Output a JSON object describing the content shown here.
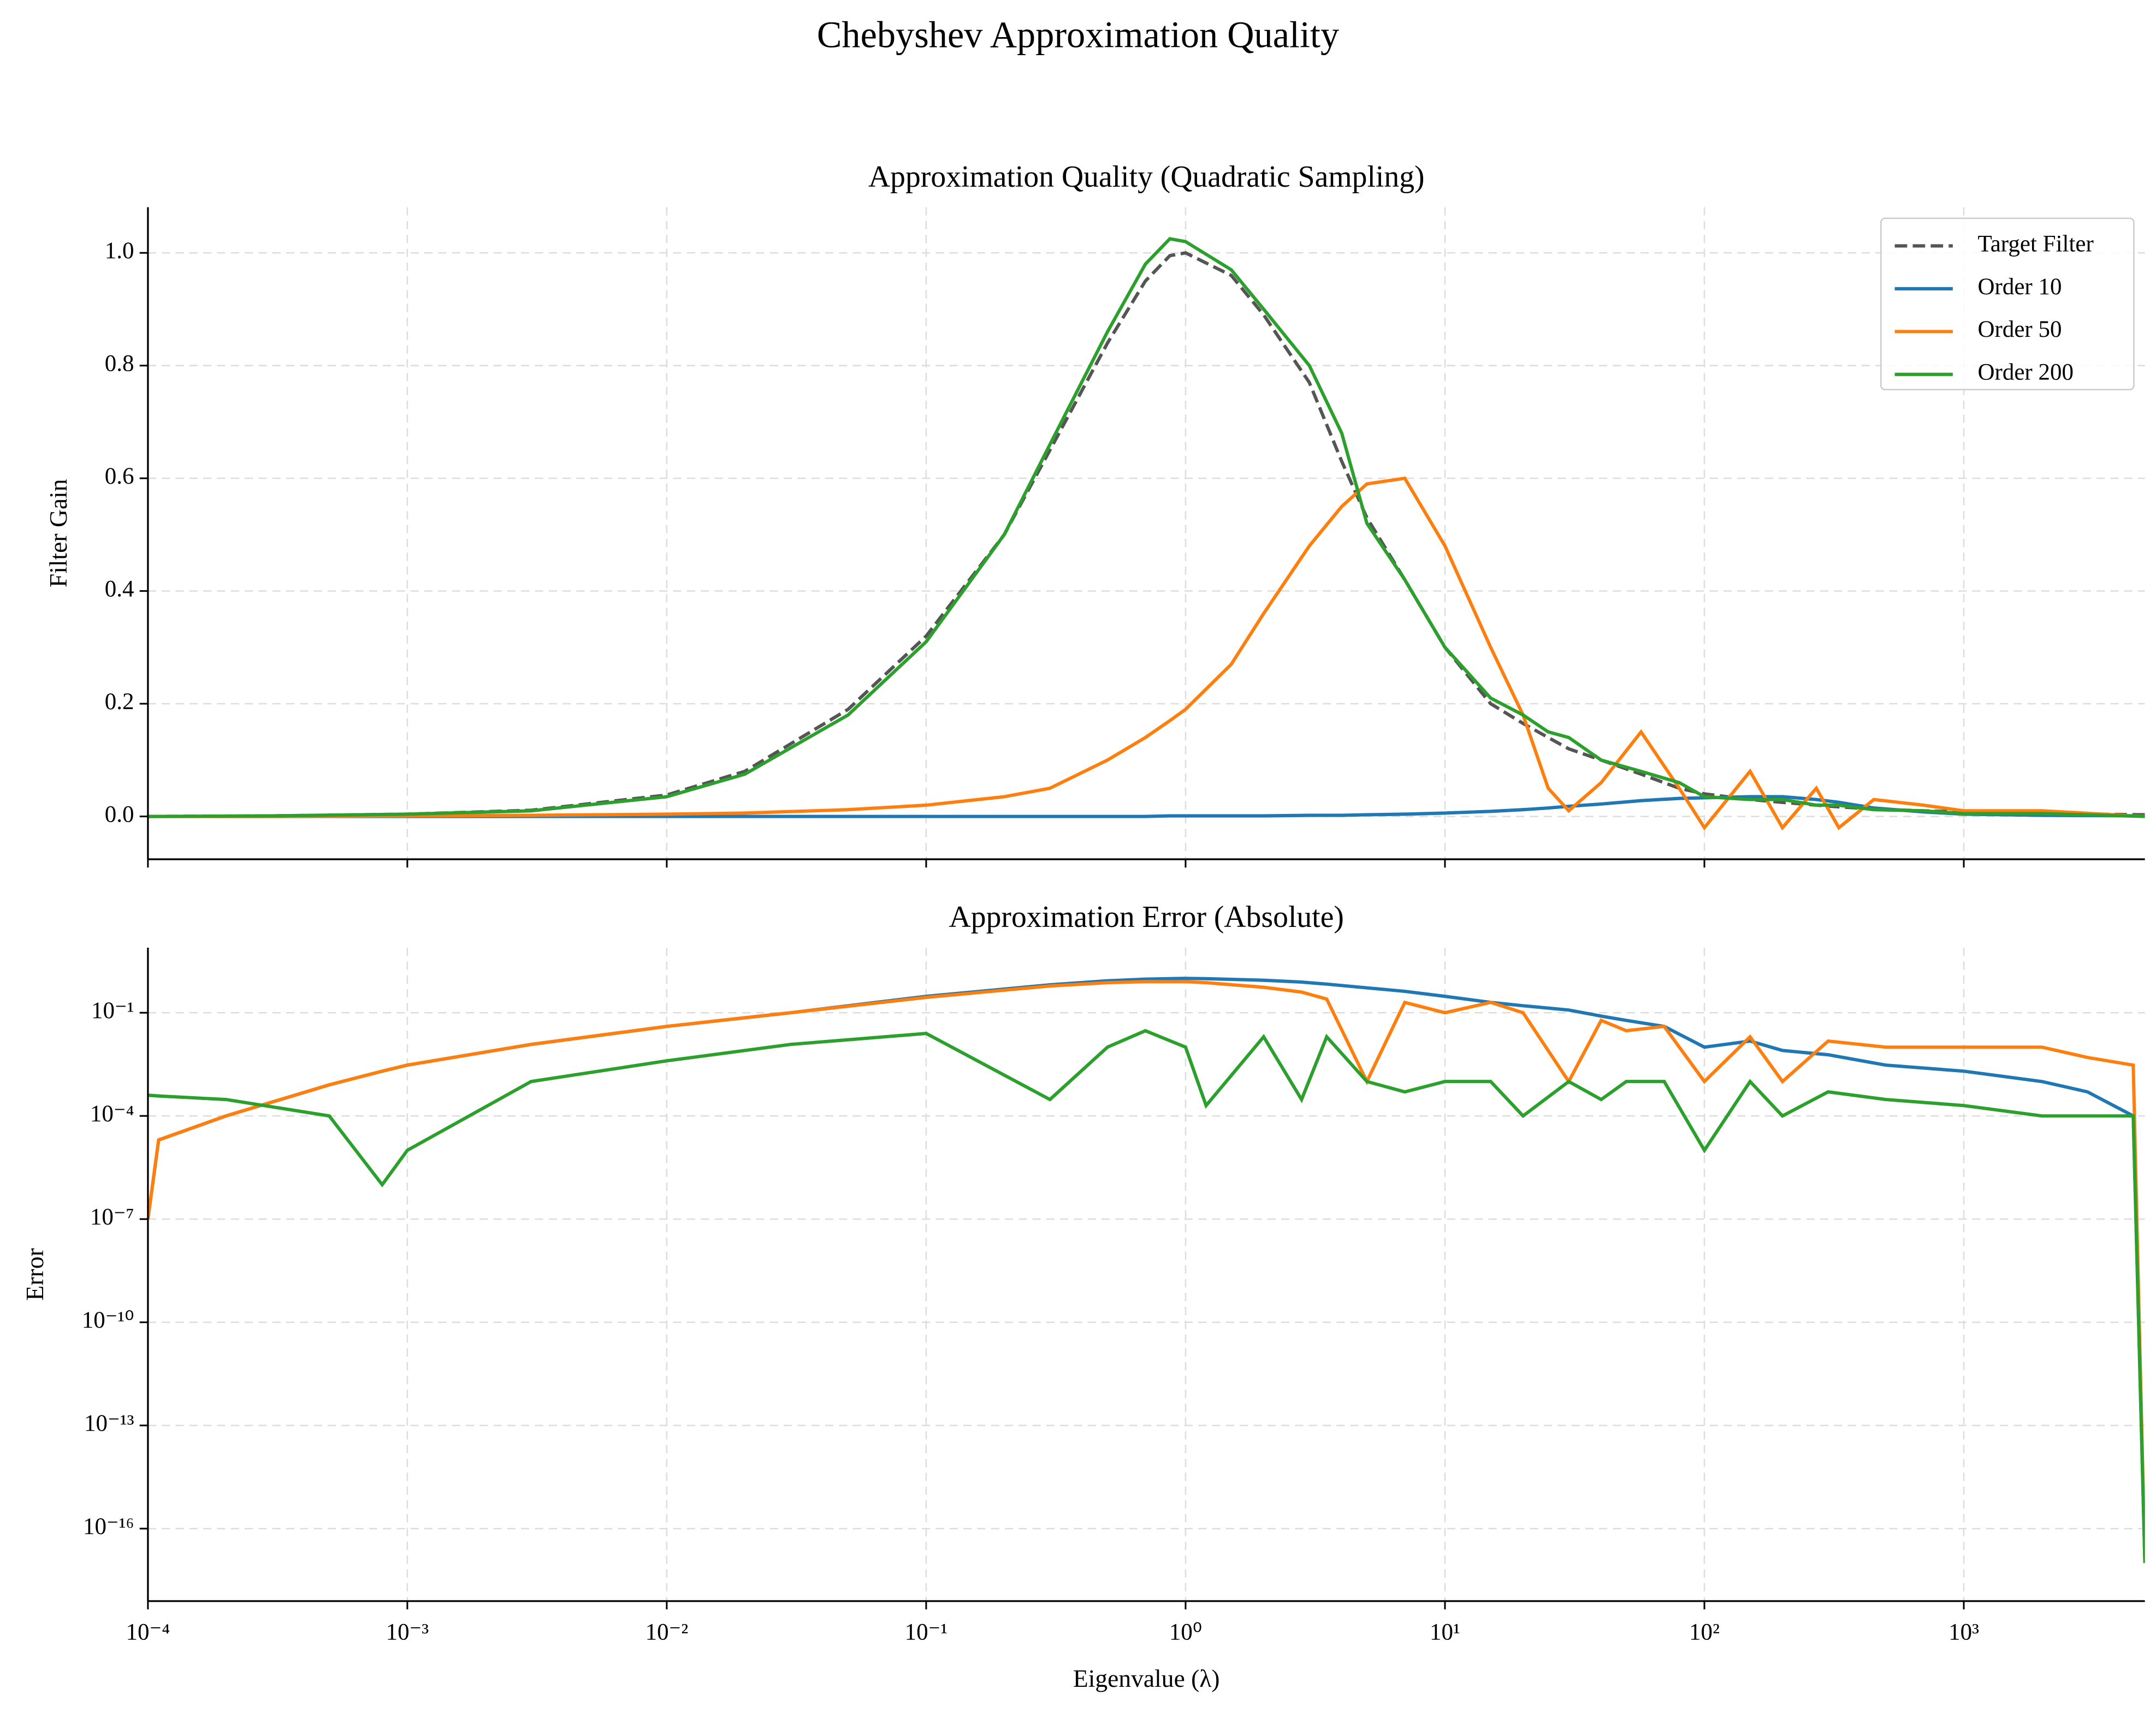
{
  "title": "Chebyshev Approximation Quality",
  "chart_data": [
    {
      "type": "line",
      "title": "Approximation Quality (Quadratic Sampling)",
      "ylabel": "Filter Gain",
      "logx": true,
      "logy": false,
      "grid": true,
      "legend": "upper right",
      "xlim": [
        0.0001,
        4990
      ],
      "ylim": [
        -0.076,
        1.081
      ],
      "yticks": [
        {
          "value": 0,
          "label": "0.0"
        },
        0.2,
        0.4,
        0.6,
        0.8,
        {
          "value": 1,
          "label": "1.0"
        }
      ],
      "x": [
        0.0001,
        0.0003,
        0.001,
        0.003,
        0.01,
        0.02,
        0.05,
        0.1,
        0.2,
        0.3,
        0.5,
        0.7,
        0.87,
        1,
        1.5,
        2,
        3,
        4,
        5,
        7,
        10,
        15,
        20,
        25,
        30,
        40,
        57,
        80,
        100,
        150,
        200,
        270,
        330,
        450,
        700,
        1000,
        2000,
        4990
      ],
      "series": [
        {
          "name": "Target Filter",
          "color": "#555555",
          "linestyle": "dashed",
          "values": [
            0,
            0.001,
            0.004,
            0.011,
            0.038,
            0.08,
            0.19,
            0.32,
            0.5,
            0.65,
            0.84,
            0.95,
            0.995,
            1.0,
            0.96,
            0.89,
            0.77,
            0.63,
            0.53,
            0.42,
            0.3,
            0.2,
            0.165,
            0.14,
            0.12,
            0.1,
            0.075,
            0.05,
            0.04,
            0.03,
            0.025,
            0.02,
            0.017,
            0.013,
            0.01,
            0.008,
            0.005,
            0.003
          ]
        },
        {
          "name": "Order 10",
          "color": "#1f77b4",
          "linestyle": "solid",
          "values": [
            0,
            0,
            0,
            0,
            0,
            0,
            0,
            0,
            0,
            0,
            0,
            0,
            0.001,
            0.001,
            0.001,
            0.001,
            0.002,
            0.002,
            0.003,
            0.004,
            0.006,
            0.009,
            0.012,
            0.015,
            0.018,
            0.022,
            0.028,
            0.032,
            0.033,
            0.035,
            0.035,
            0.03,
            0.025,
            0.015,
            0.008,
            0.004,
            0.002,
            0.001
          ]
        },
        {
          "name": "Order 50",
          "color": "#ff7f0e",
          "linestyle": "solid",
          "values": [
            0,
            0,
            0.001,
            0.002,
            0.004,
            0.006,
            0.012,
            0.02,
            0.035,
            0.05,
            0.1,
            0.14,
            0.17,
            0.19,
            0.27,
            0.36,
            0.48,
            0.55,
            0.59,
            0.6,
            0.48,
            0.3,
            0.18,
            0.05,
            0.01,
            0.06,
            0.15,
            0.05,
            -0.02,
            0.08,
            -0.02,
            0.05,
            -0.02,
            0.03,
            0.02,
            0.01,
            0.01,
            0
          ]
        },
        {
          "name": "Order 200",
          "color": "#2ca02c",
          "linestyle": "solid",
          "values": [
            0,
            0.001,
            0.004,
            0.01,
            0.035,
            0.075,
            0.18,
            0.31,
            0.5,
            0.66,
            0.86,
            0.98,
            1.025,
            1.02,
            0.97,
            0.9,
            0.8,
            0.68,
            0.52,
            0.42,
            0.3,
            0.21,
            0.18,
            0.15,
            0.14,
            0.1,
            0.08,
            0.06,
            0.035,
            0.03,
            0.03,
            0.02,
            0.02,
            0.012,
            0.01,
            0.005,
            0.005,
            0
          ]
        }
      ]
    },
    {
      "type": "line",
      "title": "Approximation Error (Absolute)",
      "ylabel": "Error",
      "xlabel": "Eigenvalue (λ)",
      "logx": true,
      "logy": true,
      "grid": true,
      "xlim": [
        0.0001,
        4990
      ],
      "ylim": [
        7.8e-19,
        7.8
      ],
      "xticks": [
        {
          "value": 0.0001,
          "label": "10⁻⁴"
        },
        {
          "value": 0.001,
          "label": "10⁻³"
        },
        {
          "value": 0.01,
          "label": "10⁻²"
        },
        {
          "value": 0.1,
          "label": "10⁻¹"
        },
        {
          "value": 1,
          "label": "10⁰"
        },
        {
          "value": 10,
          "label": "10¹"
        },
        {
          "value": 100,
          "label": "10²"
        },
        {
          "value": 1000,
          "label": "10³"
        }
      ],
      "yticks": [
        {
          "value": 1e-16,
          "label": "10⁻¹⁶"
        },
        {
          "value": 1e-13,
          "label": "10⁻¹³"
        },
        {
          "value": 1e-10,
          "label": "10⁻¹⁰"
        },
        {
          "value": 1e-07,
          "label": "10⁻⁷"
        },
        {
          "value": 0.0001,
          "label": "10⁻⁴"
        },
        {
          "value": 0.1,
          "label": "10⁻¹"
        }
      ],
      "x": [
        0.0001,
        0.00011,
        0.0002,
        0.0005,
        0.0008,
        0.001,
        0.003,
        0.01,
        0.03,
        0.1,
        0.3,
        0.5,
        0.7,
        1,
        1.2,
        2,
        2.8,
        3.5,
        5,
        7,
        10,
        15,
        20,
        30,
        40,
        50,
        70,
        100,
        150,
        200,
        300,
        500,
        1000,
        2000,
        3000,
        4500,
        4990
      ],
      "series": [
        {
          "name": "Order 10",
          "color": "#1f77b4",
          "linestyle": "solid",
          "values": [
            1e-07,
            2e-05,
            0.0001,
            0.0008,
            0.002,
            0.003,
            0.012,
            0.04,
            0.1,
            0.3,
            0.65,
            0.85,
            0.95,
            1.0,
            0.98,
            0.88,
            0.78,
            0.68,
            0.53,
            0.42,
            0.3,
            0.2,
            0.16,
            0.12,
            0.08,
            0.06,
            0.04,
            0.01,
            0.015,
            0.008,
            0.006,
            0.003,
            0.002,
            0.001,
            0.0005,
            0.0001,
            1e-17
          ]
        },
        {
          "name": "Order 50",
          "color": "#ff7f0e",
          "linestyle": "solid",
          "values": [
            1e-07,
            2e-05,
            0.0001,
            0.0008,
            0.002,
            0.003,
            0.012,
            0.04,
            0.1,
            0.28,
            0.6,
            0.75,
            0.8,
            0.8,
            0.75,
            0.55,
            0.4,
            0.25,
            0.001,
            0.2,
            0.1,
            0.2,
            0.1,
            0.001,
            0.06,
            0.03,
            0.04,
            0.001,
            0.02,
            0.001,
            0.015,
            0.01,
            0.01,
            0.01,
            0.005,
            0.003,
            1e-17
          ]
        },
        {
          "name": "Order 200",
          "color": "#2ca02c",
          "linestyle": "solid",
          "values": [
            0.0004,
            0.00038,
            0.0003,
            0.0001,
            1e-06,
            1e-05,
            0.001,
            0.004,
            0.012,
            0.025,
            0.0003,
            0.01,
            0.03,
            0.01,
            0.0002,
            0.02,
            0.0003,
            0.02,
            0.001,
            0.0005,
            0.001,
            0.001,
            0.0001,
            0.001,
            0.0003,
            0.001,
            0.001,
            1e-05,
            0.001,
            0.0001,
            0.0005,
            0.0003,
            0.0002,
            0.0001,
            0.0001,
            0.0001,
            1e-17
          ]
        }
      ]
    }
  ]
}
